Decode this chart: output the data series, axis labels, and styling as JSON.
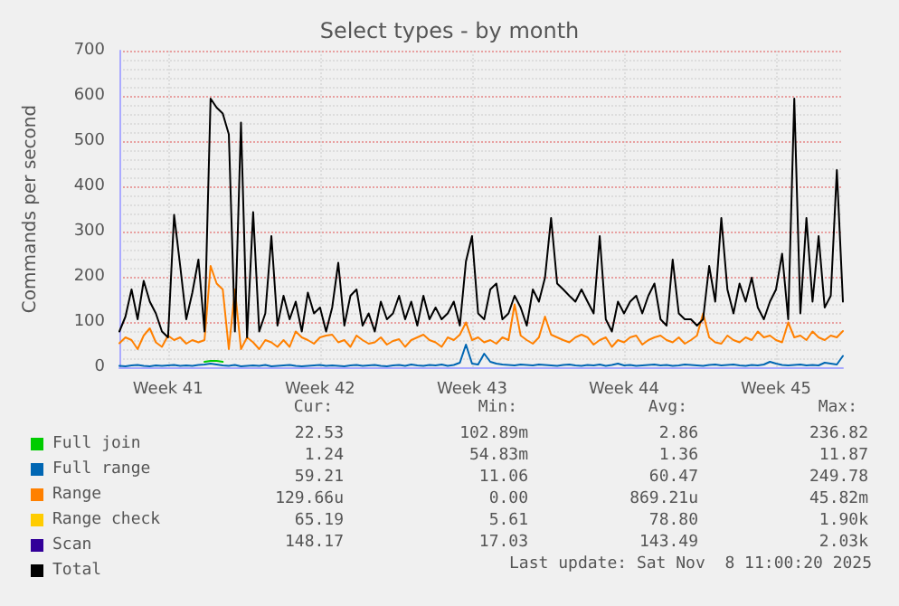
{
  "chart_data": {
    "type": "line",
    "title": "Select types - by month",
    "ylabel": "Commands per second",
    "categories": [
      null,
      null,
      null,
      null,
      null,
      null,
      null,
      null,
      "Week 41",
      null,
      null,
      null,
      null,
      null,
      null,
      null,
      null,
      null,
      null,
      null,
      null,
      null,
      null,
      null,
      null,
      null,
      null,
      null,
      null,
      null,
      null,
      null,
      null,
      "Week 42",
      null,
      null,
      null,
      null,
      null,
      null,
      null,
      null,
      null,
      null,
      null,
      null,
      null,
      null,
      null,
      null,
      null,
      null,
      null,
      null,
      null,
      null,
      null,
      null,
      "Week 43",
      null,
      null,
      null,
      null,
      null,
      null,
      null,
      null,
      null,
      null,
      null,
      null,
      null,
      null,
      null,
      null,
      null,
      null,
      null,
      null,
      null,
      null,
      null,
      null,
      "Week 44",
      null,
      null,
      null,
      null,
      null,
      null,
      null,
      null,
      null,
      null,
      null,
      null,
      null,
      null,
      null,
      null,
      null,
      null,
      null,
      null,
      null,
      null,
      null,
      null,
      "Week 45",
      null,
      null,
      null,
      null,
      null,
      null,
      null,
      null,
      null,
      null,
      null
    ],
    "ylim": [
      0,
      700
    ],
    "yticks": [
      0,
      100,
      200,
      300,
      400,
      500,
      600,
      700
    ],
    "grid": true,
    "legend": "bottom",
    "marker": "none",
    "line_style": "solid",
    "series": [
      {
        "name": "Full join",
        "color": "#00cc00",
        "values": [
          null,
          null,
          null,
          null,
          null,
          null,
          null,
          null,
          null,
          null,
          null,
          null,
          null,
          null,
          12,
          14,
          14,
          12,
          null,
          null,
          null,
          null,
          null,
          null,
          null,
          null,
          null,
          null,
          null,
          null,
          null,
          null,
          null,
          null,
          null,
          null,
          null,
          null,
          null,
          null,
          null,
          null,
          null,
          null,
          null,
          null,
          null,
          null,
          null,
          null,
          null,
          null,
          null,
          null,
          null,
          null,
          null,
          null,
          null,
          null,
          null,
          null,
          null,
          null,
          null,
          null,
          null,
          null,
          null,
          null,
          null,
          null,
          null,
          null,
          null,
          null,
          null,
          null,
          null,
          null,
          null,
          null,
          null,
          null,
          null,
          null,
          null,
          null,
          null,
          null,
          null,
          null,
          null,
          null,
          null,
          null,
          null,
          null,
          null,
          null,
          null,
          null,
          null,
          null,
          null,
          null,
          null,
          null,
          null,
          null,
          null,
          null,
          null,
          null,
          null,
          null,
          null,
          null,
          null,
          null
        ]
      },
      {
        "name": "Full range",
        "color": "#0066b3",
        "values": [
          3,
          2,
          4,
          5,
          3,
          2,
          4,
          3,
          4,
          5,
          3,
          4,
          3,
          5,
          6,
          8,
          6,
          4,
          3,
          5,
          2,
          3,
          4,
          3,
          5,
          2,
          3,
          4,
          5,
          3,
          2,
          3,
          4,
          5,
          3,
          4,
          3,
          2,
          4,
          5,
          3,
          4,
          5,
          3,
          2,
          4,
          5,
          3,
          6,
          4,
          3,
          5,
          4,
          6,
          3,
          5,
          10,
          50,
          8,
          6,
          30,
          12,
          8,
          6,
          5,
          4,
          6,
          5,
          4,
          6,
          5,
          4,
          3,
          5,
          6,
          4,
          3,
          5,
          4,
          6,
          3,
          5,
          8,
          4,
          5,
          3,
          4,
          5,
          6,
          4,
          5,
          3,
          4,
          6,
          5,
          4,
          3,
          5,
          6,
          4,
          5,
          6,
          4,
          3,
          5,
          4,
          6,
          12,
          8,
          5,
          4,
          5,
          6,
          4,
          5,
          4,
          10,
          8,
          6,
          25
        ]
      },
      {
        "name": "Range",
        "color": "#ff8000",
        "values": [
          53,
          66,
          60,
          40,
          70,
          86,
          55,
          45,
          70,
          60,
          66,
          52,
          60,
          55,
          60,
          224,
          185,
          172,
          40,
          172,
          40,
          66,
          55,
          40,
          60,
          55,
          45,
          60,
          45,
          79,
          66,
          60,
          52,
          66,
          70,
          72,
          55,
          60,
          45,
          70,
          60,
          52,
          55,
          66,
          50,
          58,
          62,
          45,
          60,
          66,
          72,
          60,
          55,
          45,
          66,
          60,
          72,
          99,
          60,
          66,
          55,
          60,
          52,
          66,
          60,
          139,
          70,
          60,
          52,
          66,
          112,
          72,
          66,
          60,
          55,
          66,
          72,
          66,
          50,
          60,
          66,
          45,
          60,
          55,
          66,
          70,
          50,
          60,
          66,
          70,
          60,
          55,
          66,
          52,
          60,
          70,
          119,
          66,
          55,
          52,
          70,
          60,
          55,
          66,
          60,
          79,
          66,
          70,
          60,
          55,
          99,
          66,
          70,
          60,
          79,
          66,
          60,
          70,
          66,
          80
        ]
      },
      {
        "name": "Range check",
        "color": "#ffcc00",
        "values": [
          null,
          null,
          null,
          null,
          null,
          null,
          null,
          null,
          null,
          null,
          null,
          null,
          null,
          null,
          null,
          null,
          null,
          null,
          null,
          null,
          null,
          null,
          null,
          null,
          null,
          null,
          null,
          null,
          null,
          null,
          null,
          null,
          null,
          null,
          null,
          null,
          null,
          null,
          null,
          null,
          null,
          null,
          null,
          null,
          null,
          null,
          null,
          null,
          null,
          null,
          null,
          null,
          null,
          null,
          null,
          null,
          null,
          null,
          null,
          null,
          null,
          null,
          null,
          null,
          null,
          null,
          null,
          null,
          null,
          null,
          null,
          null,
          null,
          null,
          null,
          null,
          null,
          null,
          null,
          null,
          null,
          null,
          null,
          null,
          null,
          null,
          null,
          null,
          null,
          null,
          null,
          null,
          null,
          null,
          null,
          null,
          null,
          null,
          null,
          null,
          null,
          null,
          null,
          null,
          null,
          null,
          null,
          null,
          null,
          null,
          null,
          null,
          null,
          null,
          null,
          null,
          null,
          null,
          null,
          null
        ]
      },
      {
        "name": "Scan",
        "color": "#330099",
        "values": [
          null,
          null,
          null,
          null,
          null,
          null,
          null,
          null,
          null,
          null,
          null,
          null,
          null,
          null,
          null,
          null,
          null,
          null,
          null,
          null,
          null,
          null,
          null,
          null,
          null,
          null,
          null,
          null,
          null,
          null,
          null,
          null,
          null,
          null,
          null,
          null,
          null,
          null,
          null,
          null,
          null,
          null,
          null,
          null,
          null,
          null,
          null,
          null,
          null,
          null,
          null,
          null,
          null,
          null,
          null,
          null,
          null,
          null,
          null,
          null,
          null,
          null,
          null,
          null,
          null,
          null,
          null,
          null,
          null,
          null,
          null,
          null,
          null,
          null,
          null,
          null,
          null,
          null,
          null,
          null,
          null,
          null,
          null,
          null,
          null,
          null,
          null,
          null,
          null,
          null,
          null,
          null,
          null,
          null,
          null,
          null,
          null,
          null,
          null,
          null,
          null,
          null,
          null,
          null,
          null,
          null,
          null,
          null,
          null,
          null,
          null,
          null,
          null,
          null,
          null,
          null,
          null,
          null,
          null,
          null
        ]
      },
      {
        "name": "Total",
        "color": "#000000",
        "values": [
          79,
          112,
          172,
          106,
          191,
          145,
          119,
          79,
          66,
          337,
          224,
          106,
          165,
          238,
          79,
          594,
          574,
          561,
          515,
          79,
          541,
          66,
          343,
          79,
          119,
          290,
          92,
          158,
          106,
          145,
          79,
          165,
          119,
          132,
          79,
          132,
          231,
          92,
          158,
          172,
          92,
          119,
          79,
          145,
          106,
          119,
          158,
          106,
          145,
          92,
          158,
          106,
          132,
          106,
          119,
          145,
          92,
          234,
          290,
          119,
          106,
          172,
          185,
          106,
          119,
          158,
          132,
          92,
          172,
          145,
          198,
          330,
          185,
          172,
          158,
          145,
          172,
          145,
          119,
          290,
          106,
          79,
          145,
          119,
          145,
          158,
          119,
          158,
          185,
          106,
          92,
          238,
          119,
          106,
          106,
          92,
          106,
          224,
          145,
          330,
          172,
          119,
          185,
          145,
          198,
          132,
          106,
          145,
          172,
          251,
          106,
          594,
          119,
          330,
          145,
          290,
          132,
          158,
          436,
          145
        ]
      }
    ],
    "annotations": [
      "Cur:",
      "Min:",
      "Avg:",
      "Max:",
      "22.53",
      "102.89m",
      "2.86",
      "236.82",
      "1.24",
      "54.83m",
      "1.36",
      "11.87",
      "59.21",
      "11.06",
      "60.47",
      "249.78",
      "129.66u",
      "0.00",
      "869.21u",
      "45.82m",
      "65.19",
      "5.61",
      "78.80",
      "1.90k",
      "148.17",
      "17.03",
      "143.49",
      "2.03k",
      "Last update: Sat Nov  8 11:00:20 2025"
    ]
  }
}
